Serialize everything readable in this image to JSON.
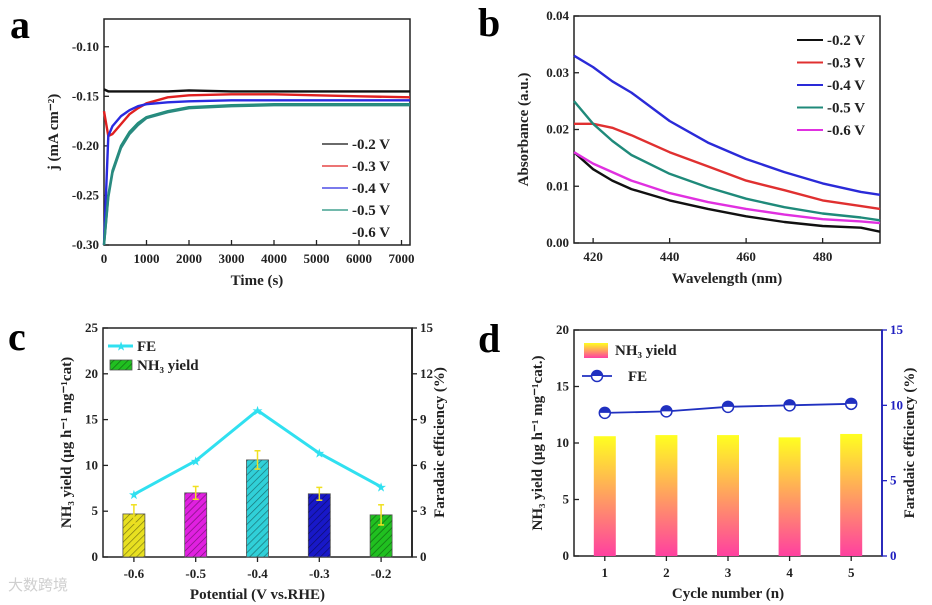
{
  "watermark": "大数跨境",
  "chart_data": [
    {
      "panel": "a",
      "type": "line",
      "xlabel": "Time (s)",
      "ylabel": "j (mA cm⁻²)",
      "xlim": [
        0,
        7200
      ],
      "ylim": [
        -0.3,
        -0.072
      ],
      "xticks": [
        0,
        1000,
        2000,
        3000,
        4000,
        5000,
        6000,
        7000
      ],
      "xtick_labels": [
        "0",
        "1000",
        "2000",
        "3000",
        "4000",
        "5000",
        "6000",
        "7000"
      ],
      "yticks": [
        -0.3,
        -0.25,
        -0.2,
        -0.15,
        -0.1
      ],
      "ytick_labels": [
        "-0.30",
        "-0.25",
        "-0.20",
        "-0.15",
        "-0.10"
      ],
      "legend_position": "bottom-right",
      "x": [
        0,
        100,
        200,
        400,
        600,
        800,
        1000,
        1500,
        2000,
        3000,
        4000,
        5000,
        6000,
        7200
      ],
      "series": [
        {
          "name": "-0.2 V",
          "color": "#111111",
          "values": [
            -0.143,
            -0.145,
            -0.145,
            -0.145,
            -0.145,
            -0.145,
            -0.145,
            -0.145,
            -0.144,
            -0.145,
            -0.145,
            -0.145,
            -0.145,
            -0.145
          ]
        },
        {
          "name": "-0.3 V",
          "color": "#e02020",
          "values": [
            -0.165,
            -0.19,
            -0.188,
            -0.178,
            -0.168,
            -0.162,
            -0.157,
            -0.151,
            -0.149,
            -0.148,
            -0.148,
            -0.149,
            -0.15,
            -0.151
          ]
        },
        {
          "name": "-0.4 V",
          "color": "#2a2ae0",
          "values": [
            -0.3,
            -0.19,
            -0.18,
            -0.17,
            -0.164,
            -0.16,
            -0.158,
            -0.156,
            -0.155,
            -0.154,
            -0.154,
            -0.154,
            -0.154,
            -0.154
          ]
        },
        {
          "name": "-0.5 V",
          "color": "#1f8f7a",
          "values": [
            -0.3,
            -0.25,
            -0.225,
            -0.2,
            -0.186,
            -0.177,
            -0.171,
            -0.165,
            -0.161,
            -0.159,
            -0.158,
            -0.158,
            -0.158,
            -0.158
          ]
        },
        {
          "name": "-0.6 V",
          "color": "#2a8a80",
          "values": [
            -0.3,
            -0.252,
            -0.227,
            -0.202,
            -0.188,
            -0.179,
            -0.172,
            -0.166,
            -0.162,
            -0.16,
            -0.159,
            -0.159,
            -0.159,
            -0.159
          ]
        }
      ]
    },
    {
      "panel": "b",
      "type": "line",
      "xlabel": "Wavelength (nm)",
      "ylabel": "Absorbance (a.u.)",
      "xlim": [
        415,
        495
      ],
      "ylim": [
        0,
        0.04
      ],
      "xticks": [
        420,
        440,
        460,
        480
      ],
      "xtick_labels": [
        "420",
        "440",
        "460",
        "480"
      ],
      "yticks": [
        0,
        0.01,
        0.02,
        0.03,
        0.04
      ],
      "ytick_labels": [
        "0.00",
        "0.01",
        "0.02",
        "0.03",
        "0.04"
      ],
      "legend_position": "top-right",
      "x": [
        415,
        420,
        425,
        430,
        440,
        450,
        460,
        470,
        480,
        490,
        495
      ],
      "series": [
        {
          "name": "-0.2 V",
          "color": "#111111",
          "values": [
            0.016,
            0.013,
            0.011,
            0.0095,
            0.0075,
            0.006,
            0.0047,
            0.0037,
            0.003,
            0.0027,
            0.002
          ]
        },
        {
          "name": "-0.3 V",
          "color": "#e03030",
          "values": [
            0.021,
            0.021,
            0.0203,
            0.019,
            0.016,
            0.0135,
            0.011,
            0.0093,
            0.0075,
            0.0065,
            0.006
          ]
        },
        {
          "name": "-0.4 V",
          "color": "#2a2ad8",
          "values": [
            0.033,
            0.031,
            0.0285,
            0.0265,
            0.0215,
            0.0177,
            0.0148,
            0.0125,
            0.0105,
            0.009,
            0.0085
          ]
        },
        {
          "name": "-0.5 V",
          "color": "#1f8a7a",
          "values": [
            0.025,
            0.021,
            0.018,
            0.0155,
            0.0122,
            0.0098,
            0.0078,
            0.0063,
            0.0052,
            0.0045,
            0.004
          ]
        },
        {
          "name": "-0.6 V",
          "color": "#e030e0",
          "values": [
            0.016,
            0.014,
            0.0125,
            0.011,
            0.0088,
            0.0072,
            0.006,
            0.005,
            0.0042,
            0.0038,
            0.0035
          ]
        }
      ]
    },
    {
      "panel": "c",
      "type": "bar",
      "xlabel": "Potential (V vs.RHE)",
      "ylabel": "NH₃ yield (μg h⁻¹ mg⁻¹cat)",
      "y2label": "Faradaic efficiency (%)",
      "categories": [
        "-0.6",
        "-0.5",
        "-0.4",
        "-0.3",
        "-0.2"
      ],
      "ylim": [
        0,
        25
      ],
      "y2lim": [
        0,
        15
      ],
      "yticks": [
        0,
        5,
        10,
        15,
        20,
        25
      ],
      "ytick_labels": [
        "0",
        "5",
        "10",
        "15",
        "20",
        "25"
      ],
      "y2ticks": [
        0,
        3,
        6,
        9,
        12,
        15
      ],
      "y2tick_labels": [
        "0",
        "3",
        "6",
        "9",
        "12",
        "15"
      ],
      "legend_position": "top-left",
      "series": [
        {
          "name": "NH₃ yield",
          "kind": "bar",
          "values": [
            4.7,
            7.0,
            10.6,
            6.9,
            4.6
          ],
          "errors": [
            1.0,
            0.7,
            1.0,
            0.7,
            1.1
          ],
          "colors": [
            "#e8e020",
            "#e020e0",
            "#30d0d8",
            "#1818c8",
            "#20c020"
          ],
          "legend_color": "#20c020"
        },
        {
          "name": "FE",
          "kind": "line",
          "axis": "right",
          "color": "#30e0f0",
          "values": [
            4.1,
            6.3,
            9.6,
            6.8,
            4.6
          ]
        }
      ]
    },
    {
      "panel": "d",
      "type": "bar",
      "xlabel": "Cycle number (n)",
      "ylabel": "NH₃ yield (μg h⁻¹ mg⁻¹cat.)",
      "y2label": "Faradaic efficiency (%)",
      "categories": [
        "1",
        "2",
        "3",
        "4",
        "5"
      ],
      "ylim": [
        0,
        20
      ],
      "y2lim": [
        0,
        15
      ],
      "yticks": [
        0,
        5,
        10,
        15,
        20
      ],
      "ytick_labels": [
        "0",
        "5",
        "10",
        "15",
        "20"
      ],
      "y2ticks": [
        0,
        5,
        10,
        15
      ],
      "y2tick_labels": [
        "0",
        "5",
        "10",
        "15"
      ],
      "legend_position": "top-left",
      "series": [
        {
          "name": "NH₃ yield",
          "kind": "bar",
          "values": [
            10.6,
            10.7,
            10.7,
            10.5,
            10.8
          ],
          "gradient": [
            "#ffff20",
            "#ff40a0"
          ]
        },
        {
          "name": "FE",
          "kind": "line",
          "axis": "right",
          "color": "#2030c0",
          "values": [
            9.5,
            9.6,
            9.9,
            10.0,
            10.1
          ]
        }
      ],
      "right_axis_color": "#2020c0"
    }
  ],
  "panels": {
    "a": "a",
    "b": "b",
    "c": "c",
    "d": "d"
  }
}
